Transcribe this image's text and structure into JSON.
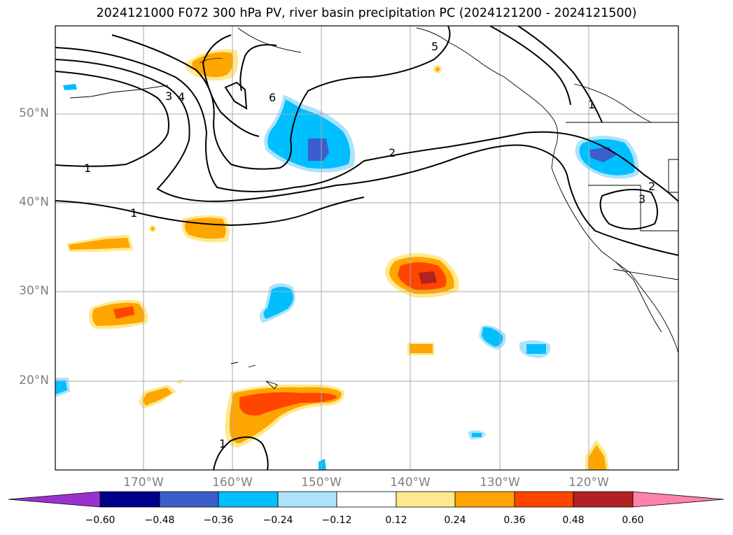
{
  "title": "2024121000 F072 300 hPa PV, river basin precipitation PC (2024121200 - 2024121500)",
  "latitude_labels": [
    "50°N",
    "40°N",
    "30°N",
    "20°N"
  ],
  "longitude_labels": [
    "170°W",
    "160°W",
    "150°W",
    "140°W",
    "130°W",
    "120°W"
  ],
  "contour_labels": [
    "1",
    "1",
    "1",
    "1",
    "2",
    "3",
    "3",
    "4",
    "5",
    "6",
    "2"
  ],
  "colorbar": {
    "tick_labels": [
      "−0.60",
      "−0.48",
      "−0.36",
      "−0.24",
      "−0.12",
      "0.12",
      "0.24",
      "0.36",
      "0.48",
      "0.60"
    ],
    "bins": [
      {
        "range": "< -0.60",
        "color": "#9932CC"
      },
      {
        "range": "-0.60 to -0.48",
        "color": "#00008B"
      },
      {
        "range": "-0.48 to -0.36",
        "color": "#3A5FCD"
      },
      {
        "range": "-0.36 to -0.24",
        "color": "#00BFFF"
      },
      {
        "range": "-0.24 to -0.12",
        "color": "#ADE3FA"
      },
      {
        "range": "-0.12 to 0.12",
        "color": "#FFFFFF"
      },
      {
        "range": "0.12 to 0.24",
        "color": "#FFE98C"
      },
      {
        "range": "0.24 to 0.36",
        "color": "#FFA500"
      },
      {
        "range": "0.36 to 0.48",
        "color": "#FF4500"
      },
      {
        "range": "0.48 to 0.60",
        "color": "#B22222"
      },
      {
        "range": "> 0.60",
        "color": "#FF82AB"
      }
    ]
  },
  "map_extent": {
    "lon": [
      "180°",
      "110°W"
    ],
    "lat": [
      "10°N",
      "60°N"
    ]
  },
  "gridlines": true
}
